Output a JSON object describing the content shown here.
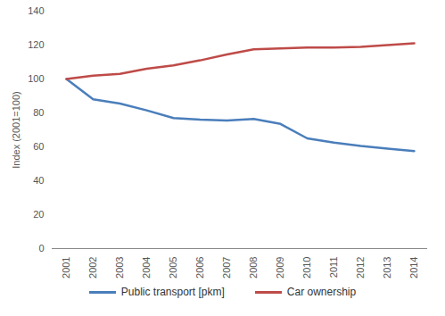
{
  "chart_data": {
    "type": "line",
    "y_label": "Index (2001=100)",
    "categories": [
      "2001",
      "2002",
      "2003",
      "2004",
      "2005",
      "2006",
      "2007",
      "2008",
      "2009",
      "2010",
      "2011",
      "2012",
      "2013",
      "2014"
    ],
    "series": [
      {
        "name": "Public transport [pkm]",
        "color": "#4a7ebb",
        "values": [
          100,
          88,
          85.5,
          81.5,
          77,
          76,
          75.5,
          76.5,
          73.5,
          65,
          62.5,
          60.5,
          59,
          57.5
        ]
      },
      {
        "name": "Car ownership",
        "color": "#be4b48",
        "values": [
          100,
          102,
          103,
          106,
          108,
          111,
          114.5,
          117.5,
          118,
          118.5,
          118.5,
          119,
          120,
          121
        ]
      }
    ],
    "ylim": [
      0,
      140
    ],
    "yticks": [
      0,
      20,
      40,
      60,
      80,
      100,
      120,
      140
    ],
    "grid": false,
    "legend": "bottom"
  }
}
